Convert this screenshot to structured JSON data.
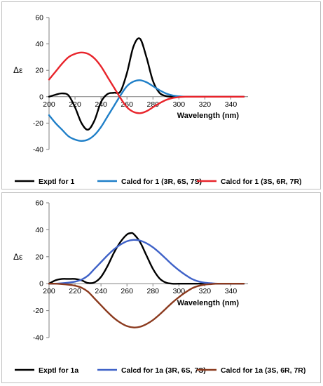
{
  "chart_data": [
    {
      "type": "line",
      "title": "",
      "xlabel": "Wavelength (nm)",
      "ylabel": "Δε",
      "xlim": [
        200,
        350
      ],
      "ylim": [
        -40,
        60
      ],
      "x_ticks": [
        "200",
        "220",
        "240",
        "260",
        "280",
        "300",
        "320",
        "340"
      ],
      "y_ticks": [
        "60",
        "40",
        "20",
        "0",
        "-20",
        "-40"
      ],
      "grid": false,
      "legend_position": "bottom",
      "series": [
        {
          "name": "Exptl for 1",
          "color": "#000000",
          "x": [
            200,
            205,
            210,
            215,
            220,
            225,
            230,
            235,
            240,
            245,
            250,
            255,
            260,
            265,
            270,
            275,
            280,
            285,
            290,
            295,
            300,
            310,
            320,
            330,
            340,
            350
          ],
          "y": [
            0,
            1.5,
            2.5,
            1,
            -8,
            -20,
            -25,
            -18,
            -4,
            2,
            3,
            4,
            18,
            38,
            44,
            30,
            12,
            3,
            0.5,
            0,
            0,
            0,
            0,
            0,
            0,
            0
          ]
        },
        {
          "name": "Calcd for 1 (3R, 6S, 7S)",
          "color": "#1f7fc8",
          "x": [
            200,
            205,
            210,
            215,
            220,
            225,
            230,
            235,
            240,
            245,
            250,
            255,
            260,
            265,
            270,
            275,
            280,
            285,
            290,
            295,
            300,
            305,
            310,
            320,
            330,
            340,
            350
          ],
          "y": [
            -14,
            -20,
            -25,
            -30,
            -32.5,
            -33.5,
            -32.5,
            -29,
            -23,
            -15,
            -7,
            1,
            8,
            11.5,
            12.5,
            11,
            8,
            5,
            2.5,
            1,
            0.3,
            0,
            0,
            0,
            0,
            0,
            0
          ]
        },
        {
          "name": "Calcd for 1 (3S, 6R, 7R)",
          "color": "#e8242b",
          "x": [
            200,
            205,
            210,
            215,
            220,
            225,
            230,
            235,
            240,
            245,
            250,
            255,
            260,
            265,
            270,
            275,
            280,
            285,
            290,
            295,
            300,
            305,
            310,
            320,
            330,
            340,
            350
          ],
          "y": [
            13,
            19,
            25,
            30,
            32.5,
            33.5,
            32.5,
            29,
            23,
            15,
            7,
            -1,
            -8,
            -11.5,
            -12.5,
            -11,
            -8,
            -5,
            -2.5,
            -1,
            -0.3,
            0,
            0,
            0,
            0,
            0,
            0
          ]
        }
      ]
    },
    {
      "type": "line",
      "title": "",
      "xlabel": "Wavelength (nm)",
      "ylabel": "Δε",
      "xlim": [
        200,
        350
      ],
      "ylim": [
        -40,
        60
      ],
      "x_ticks": [
        "200",
        "220",
        "240",
        "260",
        "280",
        "300",
        "320",
        "340"
      ],
      "y_ticks": [
        "60",
        "40",
        "20",
        "0",
        "-20",
        "-40"
      ],
      "grid": false,
      "legend_position": "bottom",
      "series": [
        {
          "name": "Exptl for 1a",
          "color": "#000000",
          "x": [
            200,
            205,
            210,
            215,
            220,
            225,
            230,
            235,
            240,
            245,
            250,
            255,
            260,
            263,
            265,
            270,
            275,
            280,
            285,
            290,
            295,
            300,
            310,
            320,
            330,
            340,
            350
          ],
          "y": [
            0,
            2.5,
            3.5,
            3.5,
            3.5,
            2.5,
            0.5,
            1,
            5,
            13,
            23,
            31,
            36.5,
            37.5,
            37,
            31,
            21,
            11,
            4,
            0.8,
            0,
            0,
            0,
            0,
            0,
            0,
            0
          ]
        },
        {
          "name": "Calcd for 1a (3R, 6S, 7S)",
          "color": "#3f62c8",
          "x": [
            200,
            205,
            210,
            215,
            220,
            225,
            230,
            235,
            240,
            245,
            250,
            255,
            260,
            265,
            270,
            275,
            280,
            285,
            290,
            295,
            300,
            305,
            310,
            315,
            320,
            325,
            330,
            340,
            350
          ],
          "y": [
            0,
            0,
            0.3,
            0.8,
            1.5,
            3,
            6,
            11,
            16,
            21,
            25.5,
            29,
            31.5,
            32.5,
            32,
            30,
            27,
            23,
            18.5,
            14,
            10,
            6.5,
            3.5,
            1.7,
            0.7,
            0.3,
            0,
            0,
            0
          ]
        },
        {
          "name": "Calcd for 1a (3S, 6R, 7R)",
          "color": "#8b3a1e",
          "x": [
            200,
            205,
            210,
            215,
            220,
            225,
            230,
            235,
            240,
            245,
            250,
            255,
            260,
            265,
            270,
            275,
            280,
            285,
            290,
            295,
            300,
            305,
            310,
            315,
            320,
            325,
            330,
            340,
            350
          ],
          "y": [
            0,
            0,
            -0.3,
            -0.8,
            -1.5,
            -3,
            -6,
            -11,
            -16,
            -21,
            -25.5,
            -29,
            -31.5,
            -32.5,
            -32,
            -30,
            -27,
            -23,
            -18.5,
            -14,
            -10,
            -6.5,
            -3.5,
            -1.7,
            -0.7,
            -0.3,
            0,
            0,
            0
          ]
        }
      ]
    }
  ]
}
